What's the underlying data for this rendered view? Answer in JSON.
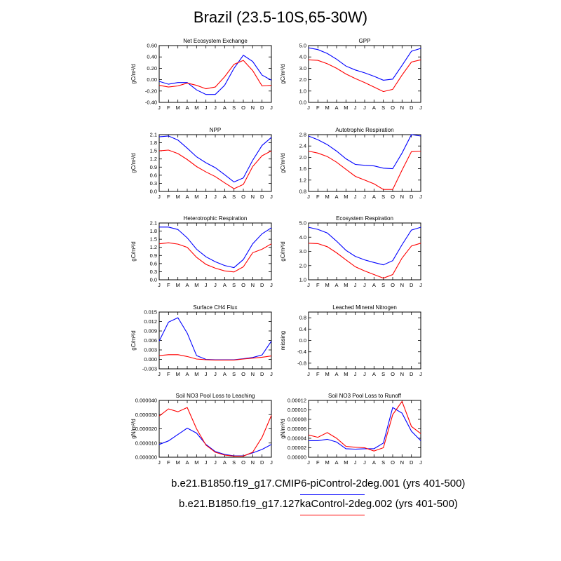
{
  "title": "Brazil (23.5-10S,65-30W)",
  "legend": [
    {
      "label": "b.e21.B1850.f19_g17.CMIP6-piControl-2deg.001 (yrs 401-500)",
      "color": "#0000ff"
    },
    {
      "label": "b.e21.B1850.f19_g17.127kaControl-2deg.002 (yrs 401-500)",
      "color": "#ff0000"
    }
  ],
  "chart_data": [
    {
      "type": "line",
      "title": "Net Ecosystem Exchange",
      "ylabel": "gC/m^2/d",
      "x": [
        "J",
        "F",
        "M",
        "A",
        "M",
        "J",
        "J",
        "A",
        "S",
        "O",
        "N",
        "D",
        "J"
      ],
      "ylim": [
        -0.4,
        0.6
      ],
      "yticks": [
        "0.60",
        "0.40",
        "0.20",
        "0.00",
        "-0.20",
        "-0.40"
      ],
      "series": [
        {
          "color": "#0000ff",
          "values": [
            -0.03,
            -0.08,
            -0.05,
            -0.05,
            -0.18,
            -0.26,
            -0.26,
            -0.1,
            0.2,
            0.43,
            0.32,
            0.08,
            -0.01
          ]
        },
        {
          "color": "#ff0000",
          "values": [
            -0.1,
            -0.13,
            -0.11,
            -0.06,
            -0.1,
            -0.16,
            -0.13,
            0.05,
            0.27,
            0.34,
            0.16,
            -0.11,
            -0.1
          ]
        }
      ]
    },
    {
      "type": "line",
      "title": "GPP",
      "ylabel": "gC/m^2/d",
      "x": [
        "J",
        "F",
        "M",
        "A",
        "M",
        "J",
        "J",
        "A",
        "S",
        "O",
        "N",
        "D",
        "J"
      ],
      "ylim": [
        0,
        5
      ],
      "yticks": [
        "5.0",
        "4.0",
        "3.0",
        "2.0",
        "1.0",
        "0.0"
      ],
      "series": [
        {
          "color": "#0000ff",
          "values": [
            4.8,
            4.65,
            4.3,
            3.8,
            3.2,
            2.85,
            2.6,
            2.3,
            1.95,
            2.05,
            3.25,
            4.5,
            4.75
          ]
        },
        {
          "color": "#ff0000",
          "values": [
            3.75,
            3.7,
            3.4,
            3.0,
            2.5,
            2.1,
            1.75,
            1.35,
            0.95,
            1.15,
            2.4,
            3.55,
            3.75
          ]
        }
      ]
    },
    {
      "type": "line",
      "title": "NPP",
      "ylabel": "gC/m^2/d",
      "x": [
        "J",
        "F",
        "M",
        "A",
        "M",
        "J",
        "J",
        "A",
        "S",
        "O",
        "N",
        "D",
        "J"
      ],
      "ylim": [
        0,
        2.1
      ],
      "yticks": [
        "2.1",
        "1.8",
        "1.5",
        "1.2",
        "0.9",
        "0.6",
        "0.3",
        "0.0"
      ],
      "series": [
        {
          "color": "#0000ff",
          "values": [
            2.02,
            2.05,
            1.9,
            1.6,
            1.28,
            1.06,
            0.88,
            0.62,
            0.35,
            0.5,
            1.15,
            1.7,
            2.0
          ]
        },
        {
          "color": "#ff0000",
          "values": [
            1.5,
            1.53,
            1.4,
            1.18,
            0.92,
            0.72,
            0.55,
            0.32,
            0.1,
            0.26,
            0.92,
            1.32,
            1.5
          ]
        }
      ]
    },
    {
      "type": "line",
      "title": "Autotrophic Respiration",
      "ylabel": "gC/m^2/d",
      "x": [
        "J",
        "F",
        "M",
        "A",
        "M",
        "J",
        "J",
        "A",
        "S",
        "O",
        "N",
        "D",
        "J"
      ],
      "ylim": [
        0.8,
        2.8
      ],
      "yticks": [
        "2.8",
        "2.4",
        "2.0",
        "1.6",
        "1.2",
        "0.8"
      ],
      "series": [
        {
          "color": "#0000ff",
          "values": [
            2.75,
            2.62,
            2.45,
            2.22,
            1.95,
            1.75,
            1.72,
            1.7,
            1.62,
            1.6,
            2.15,
            2.8,
            2.75
          ]
        },
        {
          "color": "#ff0000",
          "values": [
            2.22,
            2.15,
            2.03,
            1.83,
            1.58,
            1.33,
            1.2,
            1.07,
            0.87,
            0.87,
            1.55,
            2.2,
            2.22
          ]
        }
      ]
    },
    {
      "type": "line",
      "title": "Heterotrophic Respiration",
      "ylabel": "gC/m^2/d",
      "x": [
        "J",
        "F",
        "M",
        "A",
        "M",
        "J",
        "J",
        "A",
        "S",
        "O",
        "N",
        "D",
        "J"
      ],
      "ylim": [
        0,
        2.1
      ],
      "yticks": [
        "2.1",
        "1.8",
        "1.5",
        "1.2",
        "0.9",
        "0.6",
        "0.3",
        "0.0"
      ],
      "series": [
        {
          "color": "#0000ff",
          "values": [
            1.95,
            1.95,
            1.86,
            1.55,
            1.13,
            0.85,
            0.67,
            0.53,
            0.45,
            0.75,
            1.33,
            1.7,
            1.92
          ]
        },
        {
          "color": "#ff0000",
          "values": [
            1.33,
            1.37,
            1.32,
            1.2,
            0.83,
            0.57,
            0.43,
            0.33,
            0.29,
            0.48,
            1.0,
            1.13,
            1.33
          ]
        }
      ]
    },
    {
      "type": "line",
      "title": "Ecosystem Respiration",
      "ylabel": "gC/m^2/d",
      "x": [
        "J",
        "F",
        "M",
        "A",
        "M",
        "J",
        "J",
        "A",
        "S",
        "O",
        "N",
        "D",
        "J"
      ],
      "ylim": [
        1.0,
        5.0
      ],
      "yticks": [
        "5.0",
        "4.0",
        "3.0",
        "2.0",
        "1.0"
      ],
      "series": [
        {
          "color": "#0000ff",
          "values": [
            4.7,
            4.55,
            4.3,
            3.72,
            3.08,
            2.65,
            2.4,
            2.22,
            2.05,
            2.35,
            3.47,
            4.5,
            4.7
          ]
        },
        {
          "color": "#ff0000",
          "values": [
            3.58,
            3.55,
            3.33,
            2.9,
            2.4,
            1.92,
            1.62,
            1.37,
            1.12,
            1.37,
            2.53,
            3.38,
            3.58
          ]
        }
      ]
    },
    {
      "type": "line",
      "title": "Surface CH4 Flux",
      "ylabel": "gC/m^2/d",
      "x": [
        "J",
        "F",
        "M",
        "A",
        "M",
        "J",
        "J",
        "A",
        "S",
        "O",
        "N",
        "D",
        "J"
      ],
      "ylim": [
        -0.003,
        0.015
      ],
      "yticks": [
        "0.015",
        "0.012",
        "0.009",
        "0.006",
        "0.003",
        "0.000",
        "-0.003"
      ],
      "series": [
        {
          "color": "#0000ff",
          "values": [
            0.0058,
            0.0118,
            0.0132,
            0.0083,
            0.0012,
            0.0,
            -0.0001,
            -0.0001,
            -0.0001,
            0.0002,
            0.0006,
            0.0014,
            0.0058
          ]
        },
        {
          "color": "#ff0000",
          "values": [
            0.0012,
            0.0015,
            0.0015,
            0.0009,
            0.0001,
            -0.0001,
            -0.0002,
            -0.0002,
            -0.0002,
            0.0001,
            0.0004,
            0.0007,
            0.0011
          ]
        }
      ]
    },
    {
      "type": "line",
      "title": "Leached Mineral Nitrogen",
      "ylabel": "missing",
      "x": [
        "J",
        "F",
        "M",
        "A",
        "M",
        "J",
        "J",
        "A",
        "S",
        "O",
        "N",
        "D",
        "J"
      ],
      "ylim": [
        -1.0,
        1.0
      ],
      "yticks": [
        "0.8",
        "0.4",
        "0.0",
        "-0.4",
        "-0.8"
      ],
      "series": []
    },
    {
      "type": "line",
      "title": "Soil NO3 Pool Loss to Leaching",
      "ylabel": "gN/m^2/d",
      "x": [
        "J",
        "F",
        "M",
        "A",
        "M",
        "J",
        "J",
        "A",
        "S",
        "O",
        "N",
        "D",
        "J"
      ],
      "ylim": [
        0,
        4e-05
      ],
      "yticks": [
        "0.000040",
        "0.000030",
        "0.000020",
        "0.000010",
        "0.000000"
      ],
      "series": [
        {
          "color": "#0000ff",
          "values": [
            9e-06,
            1.15e-05,
            1.6e-05,
            2.05e-05,
            1.7e-05,
            9e-06,
            4e-06,
            2e-06,
            1e-06,
            1e-06,
            3e-06,
            5.5e-06,
            9e-06
          ]
        },
        {
          "color": "#ff0000",
          "values": [
            2.9e-05,
            3.4e-05,
            3.2e-05,
            3.5e-05,
            2e-05,
            8.5e-06,
            3.5e-06,
            1.5e-06,
            8e-07,
            8e-07,
            3.5e-06,
            1.4e-05,
            2.95e-05
          ]
        }
      ]
    },
    {
      "type": "line",
      "title": "Soil NO3 Pool Loss to Runoff",
      "ylabel": "gN/m^2/d",
      "x": [
        "J",
        "F",
        "M",
        "A",
        "M",
        "J",
        "J",
        "A",
        "S",
        "O",
        "N",
        "D",
        "J"
      ],
      "ylim": [
        0,
        0.00012
      ],
      "yticks": [
        "0.00012",
        "0.00010",
        "0.00008",
        "0.00006",
        "0.00004",
        "0.00002",
        "0.00000"
      ],
      "series": [
        {
          "color": "#0000ff",
          "values": [
            3.5e-05,
            3.5e-05,
            3.8e-05,
            3.2e-05,
            1.8e-05,
            1.7e-05,
            1.8e-05,
            1.8e-05,
            3e-05,
            0.000105,
            9.3e-05,
            5.5e-05,
            3.5e-05
          ]
        },
        {
          "color": "#ff0000",
          "values": [
            4.7e-05,
            4.2e-05,
            5.2e-05,
            4e-05,
            2.3e-05,
            2.1e-05,
            2e-05,
            1.3e-05,
            2e-05,
            9e-05,
            0.000118,
            6.5e-05,
            5e-05
          ]
        }
      ]
    }
  ]
}
